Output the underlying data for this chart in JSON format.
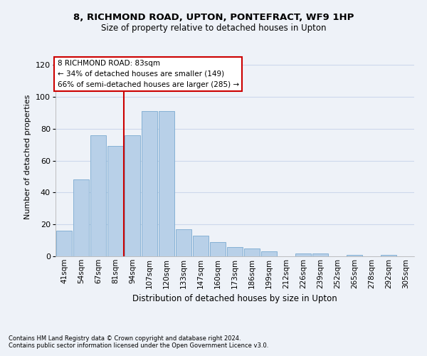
{
  "title1": "8, RICHMOND ROAD, UPTON, PONTEFRACT, WF9 1HP",
  "title2": "Size of property relative to detached houses in Upton",
  "xlabel": "Distribution of detached houses by size in Upton",
  "ylabel": "Number of detached properties",
  "categories": [
    "41sqm",
    "54sqm",
    "67sqm",
    "81sqm",
    "94sqm",
    "107sqm",
    "120sqm",
    "133sqm",
    "147sqm",
    "160sqm",
    "173sqm",
    "186sqm",
    "199sqm",
    "212sqm",
    "226sqm",
    "239sqm",
    "252sqm",
    "265sqm",
    "278sqm",
    "292sqm",
    "305sqm"
  ],
  "values": [
    16,
    48,
    76,
    69,
    76,
    91,
    91,
    17,
    13,
    9,
    6,
    5,
    3,
    0,
    2,
    2,
    0,
    1,
    0,
    1,
    0
  ],
  "bar_color": "#b8d0e8",
  "bar_edge_color": "#7aaad0",
  "vline_x": 3.5,
  "vline_color": "#cc0000",
  "annotation_text": "8 RICHMOND ROAD: 83sqm\n← 34% of detached houses are smaller (149)\n66% of semi-detached houses are larger (285) →",
  "annotation_box_color": "#ffffff",
  "annotation_box_edge_color": "#cc0000",
  "ylim": [
    0,
    125
  ],
  "yticks": [
    0,
    20,
    40,
    60,
    80,
    100,
    120
  ],
  "grid_color": "#ccd8ec",
  "footer1": "Contains HM Land Registry data © Crown copyright and database right 2024.",
  "footer2": "Contains public sector information licensed under the Open Government Licence v3.0.",
  "bg_color": "#eef2f8",
  "plot_bg_color": "#eef2f8"
}
